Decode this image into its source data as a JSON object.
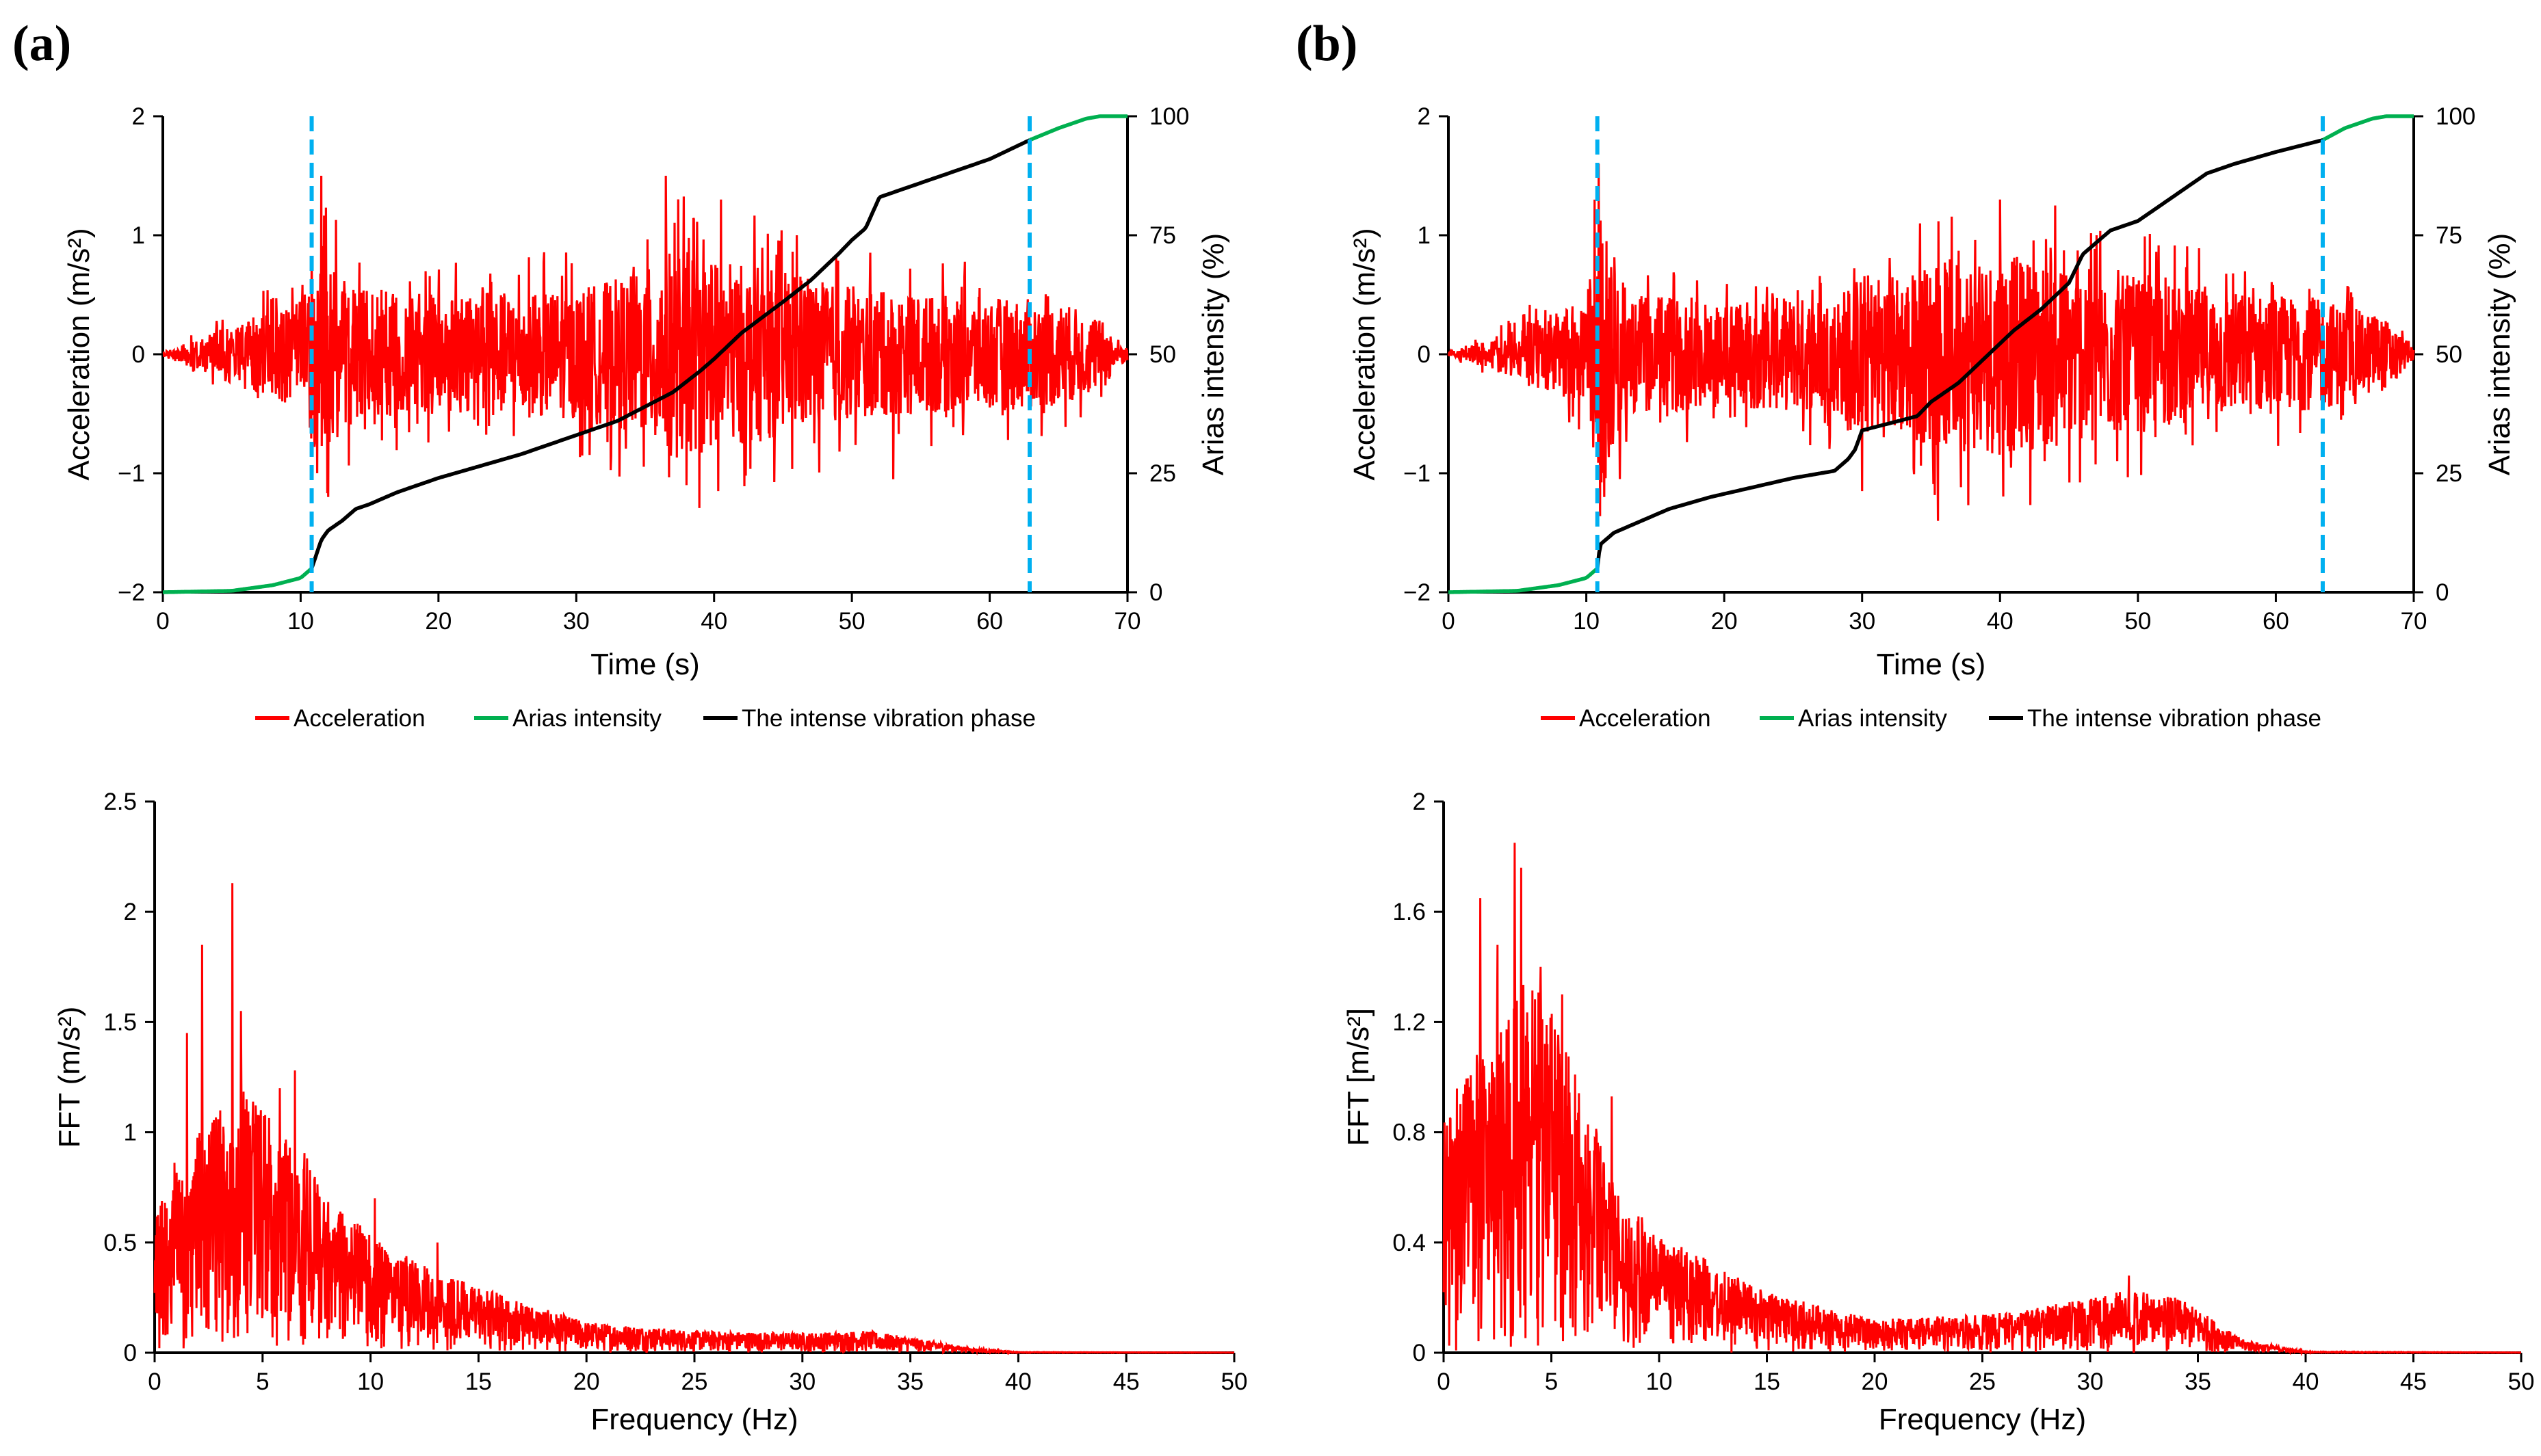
{
  "panels": [
    {
      "label": "(a)"
    },
    {
      "label": "(b)"
    }
  ],
  "legend": {
    "acceleration": "Acceleration",
    "arias": "Arias intensity",
    "intense": "The intense vibration phase"
  },
  "colors": {
    "acceleration": "#ff0000",
    "arias": "#00b050",
    "intense": "#000000",
    "phase_marker": "#00b0f0"
  },
  "chart_data": [
    {
      "panel": "(a)",
      "type": "line",
      "xlabel": "Time (s)",
      "ylabel": "Acceleration (m/s²)",
      "y2label": "Arias intensity (%)",
      "xlim": [
        0,
        70
      ],
      "xticks": [
        0,
        10,
        20,
        30,
        40,
        50,
        60,
        70
      ],
      "ylim": [
        -2,
        2
      ],
      "yticks": [
        -2,
        -1,
        0,
        1,
        2
      ],
      "y2lim": [
        0,
        100
      ],
      "y2ticks": [
        0,
        25,
        50,
        75,
        100
      ],
      "phase_bounds": [
        10.8,
        62.9
      ],
      "acceleration_envelope": {
        "t": [
          0,
          3,
          6,
          10,
          11,
          14,
          20,
          30,
          35,
          37,
          40,
          45,
          50,
          55,
          60,
          65,
          68,
          70
        ],
        "amp": [
          0.02,
          0.15,
          0.3,
          0.45,
          0.9,
          0.55,
          0.5,
          0.55,
          0.7,
          0.9,
          0.8,
          0.7,
          0.55,
          0.5,
          0.48,
          0.45,
          0.3,
          0.05
        ]
      },
      "acceleration_peaks": [
        {
          "t": 10.8,
          "v": 0.8
        },
        {
          "t": 11.2,
          "v": -1.0
        },
        {
          "t": 11.5,
          "v": 1.5
        },
        {
          "t": 12.0,
          "v": -1.2
        },
        {
          "t": 36.5,
          "v": 1.5
        },
        {
          "t": 38.0,
          "v": -1.1
        },
        {
          "t": 40.5,
          "v": 1.3
        },
        {
          "t": 40.3,
          "v": -1.15
        },
        {
          "t": 46.0,
          "v": 1.0
        },
        {
          "t": 53.0,
          "v": -1.05
        }
      ],
      "series": [
        {
          "name": "Arias intensity",
          "x": [
            0,
            5,
            8,
            10,
            10.8,
            62.9,
            65,
            67,
            68,
            70
          ],
          "y": [
            0,
            0.3,
            1.5,
            3,
            5,
            95,
            97.5,
            99.5,
            100,
            100
          ]
        },
        {
          "name": "The intense vibration phase",
          "x": [
            10.8,
            11.5,
            12,
            13,
            14,
            15,
            17,
            20,
            23,
            26,
            30,
            33,
            35,
            37,
            39,
            40,
            42,
            45,
            47,
            49,
            50,
            51,
            52,
            55,
            57,
            60,
            62.9
          ],
          "y": [
            5,
            11,
            13,
            15,
            17.5,
            18.5,
            21,
            24,
            26.5,
            29,
            33,
            36,
            39,
            42,
            46.5,
            49,
            54.5,
            61,
            65.5,
            71,
            74,
            76.5,
            83,
            86,
            88,
            91,
            95
          ]
        }
      ]
    },
    {
      "panel": "(b)",
      "type": "line",
      "xlabel": "Time (s)",
      "ylabel": "Acceleration (m/s²)",
      "y2label": "Arias intensity (%)",
      "xlim": [
        0,
        70
      ],
      "xticks": [
        0,
        10,
        20,
        30,
        40,
        50,
        60,
        70
      ],
      "ylim": [
        -2,
        2
      ],
      "yticks": [
        -2,
        -1,
        0,
        1,
        2
      ],
      "y2lim": [
        0,
        100
      ],
      "y2ticks": [
        0,
        25,
        50,
        75,
        100
      ],
      "phase_bounds": [
        10.8,
        63.4
      ],
      "acceleration_envelope": {
        "t": [
          0,
          3,
          6,
          10,
          11,
          13,
          20,
          28,
          30,
          33,
          36,
          40,
          45,
          50,
          55,
          60,
          64,
          68,
          70
        ],
        "amp": [
          0.02,
          0.12,
          0.28,
          0.45,
          1.2,
          0.5,
          0.45,
          0.5,
          0.7,
          0.7,
          0.8,
          0.85,
          0.75,
          0.65,
          0.55,
          0.5,
          0.45,
          0.3,
          0.05
        ]
      },
      "acceleration_peaks": [
        {
          "t": 10.9,
          "v": 1.6
        },
        {
          "t": 11.3,
          "v": -1.2
        },
        {
          "t": 30.0,
          "v": -1.15
        },
        {
          "t": 35.5,
          "v": -1.4
        },
        {
          "t": 40.0,
          "v": 1.3
        },
        {
          "t": 44.0,
          "v": 1.25
        },
        {
          "t": 34.2,
          "v": 1.1
        },
        {
          "t": 47.0,
          "v": 1.0
        }
      ],
      "series": [
        {
          "name": "Arias intensity",
          "x": [
            0,
            5,
            8,
            10,
            10.8,
            63.4,
            65,
            67,
            68,
            70
          ],
          "y": [
            0,
            0.3,
            1.5,
            3,
            5,
            95,
            97.5,
            99.5,
            100,
            100
          ]
        },
        {
          "name": "The intense vibration phase",
          "x": [
            10.8,
            11,
            12,
            14,
            16,
            19,
            22,
            25,
            28,
            29,
            29.5,
            30,
            32,
            34,
            35,
            37,
            39,
            41,
            43,
            45,
            46,
            48,
            50,
            52,
            55,
            57,
            60,
            63.4
          ],
          "y": [
            5,
            10,
            12.5,
            15,
            17.5,
            20,
            22,
            24,
            25.5,
            28,
            30,
            34,
            35.5,
            37,
            40,
            44,
            49.5,
            55,
            59.5,
            65,
            71,
            76,
            78,
            82,
            88,
            90,
            92.5,
            95
          ]
        }
      ]
    },
    {
      "panel": "(a)",
      "type": "line",
      "xlabel": "Frequency (Hz)",
      "ylabel": "FFT (m/s²)",
      "xlim": [
        0,
        50
      ],
      "xticks": [
        0,
        5,
        10,
        15,
        20,
        25,
        30,
        35,
        40,
        45,
        50
      ],
      "ylim": [
        0,
        2.5
      ],
      "yticks": [
        0,
        0.5,
        1,
        1.5,
        2,
        2.5
      ],
      "ytick_labels": [
        "0",
        "0.5",
        "1",
        "1.5",
        "2",
        "2.5"
      ],
      "spectrum_envelope": {
        "f": [
          0,
          1,
          2,
          3,
          4,
          5,
          6,
          7,
          8,
          10,
          12,
          15,
          18,
          20,
          25,
          30,
          33,
          35,
          38,
          40,
          50
        ],
        "amp": [
          0.6,
          0.9,
          1.0,
          1.1,
          1.2,
          1.1,
          1.0,
          0.9,
          0.7,
          0.55,
          0.42,
          0.3,
          0.2,
          0.14,
          0.1,
          0.09,
          0.1,
          0.07,
          0.02,
          0.003,
          0.001
        ]
      },
      "spectrum_peaks": [
        {
          "f": 2.2,
          "v": 1.85
        },
        {
          "f": 3.6,
          "v": 2.13
        },
        {
          "f": 4.0,
          "v": 1.55
        },
        {
          "f": 1.5,
          "v": 1.45
        },
        {
          "f": 6.5,
          "v": 1.28
        },
        {
          "f": 5.8,
          "v": 1.2
        },
        {
          "f": 10.2,
          "v": 0.7
        },
        {
          "f": 13.1,
          "v": 0.5
        }
      ]
    },
    {
      "panel": "(b)",
      "type": "line",
      "xlabel": "Frequency (Hz)",
      "ylabel": "FFT [m/s²]",
      "xlim": [
        0,
        50
      ],
      "xticks": [
        0,
        5,
        10,
        15,
        20,
        25,
        30,
        35,
        40,
        45,
        50
      ],
      "ylim": [
        0,
        2
      ],
      "yticks": [
        0,
        0.4,
        0.8,
        1.2,
        1.6,
        2
      ],
      "ytick_labels": [
        "0",
        "0.4",
        "0.8",
        "1.2",
        "1.6",
        "2"
      ],
      "spectrum_envelope": {
        "f": [
          0,
          1,
          2,
          3,
          4,
          5,
          6,
          7,
          8,
          10,
          12,
          15,
          20,
          25,
          28,
          30,
          32,
          34,
          35,
          37,
          40,
          50
        ],
        "amp": [
          0.9,
          1.0,
          1.15,
          1.3,
          1.35,
          1.25,
          1.05,
          0.85,
          0.6,
          0.42,
          0.35,
          0.22,
          0.12,
          0.14,
          0.17,
          0.2,
          0.23,
          0.2,
          0.16,
          0.05,
          0.004,
          0.001
        ]
      },
      "spectrum_peaks": [
        {
          "f": 3.3,
          "v": 1.85
        },
        {
          "f": 1.7,
          "v": 1.65
        },
        {
          "f": 3.6,
          "v": 1.76
        },
        {
          "f": 2.5,
          "v": 1.48
        },
        {
          "f": 4.5,
          "v": 1.4
        },
        {
          "f": 5.5,
          "v": 1.3
        },
        {
          "f": 7.8,
          "v": 0.93
        },
        {
          "f": 31.8,
          "v": 0.28
        }
      ]
    }
  ]
}
